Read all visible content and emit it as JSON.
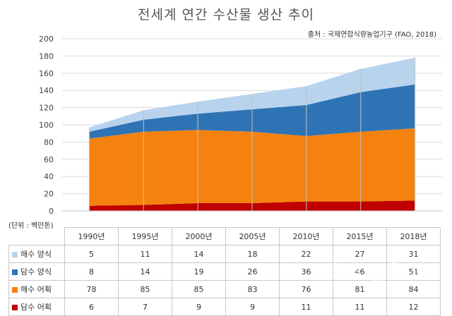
{
  "chart_data": {
    "type": "area",
    "stacked": true,
    "title": "전세계 연간 수산물 생산 추이",
    "source": "출처 : 국제연합식량농업기구 (FAO, 2018)",
    "unit_label": "(단위 : 백만톤)",
    "categories": [
      "1990년",
      "1995년",
      "2000년",
      "2005년",
      "2010년",
      "2015년",
      "2018년"
    ],
    "ylim": [
      0,
      200
    ],
    "yticks": [
      0,
      20,
      40,
      60,
      80,
      100,
      120,
      140,
      160,
      180,
      200
    ],
    "grid": true,
    "series": [
      {
        "name": "담수 어획",
        "color": "#c00000",
        "values": [
          6,
          7,
          9,
          9,
          11,
          11,
          12
        ]
      },
      {
        "name": "해수 어획",
        "color": "#f5820f",
        "values": [
          78,
          85,
          85,
          83,
          76,
          81,
          84
        ]
      },
      {
        "name": "담수 양식",
        "color": "#2e74b5",
        "values": [
          8,
          14,
          19,
          26,
          36,
          46,
          51
        ]
      },
      {
        "name": "해수 양식",
        "color": "#b8d3ee",
        "values": [
          5,
          11,
          14,
          18,
          22,
          27,
          31
        ]
      }
    ],
    "table_rows": [
      {
        "name": "해수 양식",
        "color": "#b8d3ee",
        "values": [
          "5",
          "11",
          "14",
          "18",
          "22",
          "27",
          "31"
        ]
      },
      {
        "name": "담수 양식",
        "color": "#2e74b5",
        "values": [
          "8",
          "14",
          "19",
          "26",
          "36",
          "46",
          "51"
        ]
      },
      {
        "name": "해수 어획",
        "color": "#f5820f",
        "values": [
          "78",
          "85",
          "85",
          "83",
          "76",
          "81",
          "84"
        ]
      },
      {
        "name": "담수 어획",
        "color": "#c00000",
        "values": [
          "6",
          "7",
          "9",
          "9",
          "11",
          "11",
          "12"
        ]
      }
    ]
  },
  "watermark": "dongA.com"
}
